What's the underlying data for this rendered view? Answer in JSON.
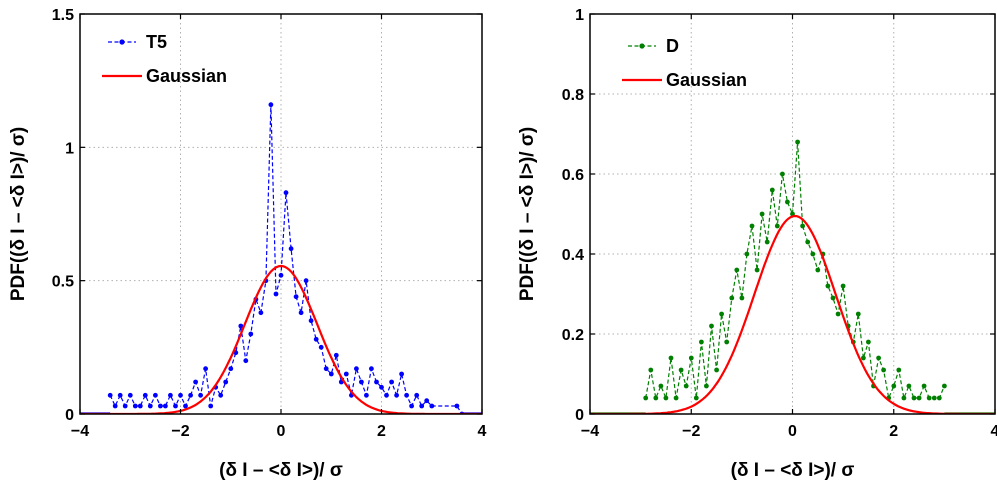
{
  "chart_data": [
    {
      "type": "line",
      "xlabel": "(δ I – <δ I>)/ σ",
      "ylabel": "PDF((δ I – <δ I>)/ σ)",
      "xlim": [
        -4,
        4
      ],
      "ylim": [
        0,
        1.5
      ],
      "xticks": [
        "−4",
        "−2",
        "0",
        "2",
        "4"
      ],
      "xtick_values": [
        -4,
        -2,
        0,
        2,
        4
      ],
      "yticks": [
        "0",
        "0.5",
        "1",
        "1.5"
      ],
      "ytick_values": [
        0,
        0.5,
        1,
        1.5
      ],
      "grid": true,
      "legend": "top-left",
      "series": [
        {
          "name": "T5",
          "color": "#0000ff",
          "style": "dashed-dots",
          "x": [
            -3.4,
            -3.3,
            -3.2,
            -3.1,
            -3.0,
            -2.9,
            -2.8,
            -2.7,
            -2.6,
            -2.5,
            -2.4,
            -2.3,
            -2.2,
            -2.1,
            -2.0,
            -1.9,
            -1.8,
            -1.7,
            -1.6,
            -1.5,
            -1.4,
            -1.3,
            -1.2,
            -1.1,
            -1.0,
            -0.9,
            -0.8,
            -0.7,
            -0.6,
            -0.5,
            -0.4,
            -0.3,
            -0.2,
            -0.1,
            0.0,
            0.1,
            0.2,
            0.3,
            0.4,
            0.5,
            0.6,
            0.7,
            0.8,
            0.9,
            1.0,
            1.1,
            1.2,
            1.3,
            1.4,
            1.5,
            1.6,
            1.7,
            1.8,
            1.9,
            2.0,
            2.1,
            2.2,
            2.3,
            2.4,
            2.5,
            2.6,
            2.7,
            2.8,
            2.9,
            3.0,
            3.5,
            3.6
          ],
          "y": [
            0.07,
            0.03,
            0.07,
            0.03,
            0.07,
            0.03,
            0.03,
            0.07,
            0.03,
            0.07,
            0.03,
            0.03,
            0.07,
            0.03,
            0.07,
            0.03,
            0.07,
            0.12,
            0.07,
            0.17,
            0.03,
            0.1,
            0.07,
            0.12,
            0.17,
            0.23,
            0.33,
            0.2,
            0.3,
            0.43,
            0.38,
            0.5,
            1.16,
            0.45,
            0.52,
            0.83,
            0.62,
            0.44,
            0.38,
            0.5,
            0.35,
            0.28,
            0.25,
            0.17,
            0.15,
            0.22,
            0.12,
            0.15,
            0.07,
            0.17,
            0.12,
            0.07,
            0.17,
            0.12,
            0.1,
            0.07,
            0.12,
            0.07,
            0.15,
            0.07,
            0.03,
            0.07,
            0.03,
            0.05,
            0.03,
            0.03,
            0.0
          ]
        },
        {
          "name": "Gaussian",
          "color": "#ff0000",
          "style": "solid",
          "mean": 0.0,
          "sd": 0.72,
          "peak": 0.555
        }
      ]
    },
    {
      "type": "line",
      "xlabel": "(δ I – <δ I>)/ σ",
      "ylabel": "PDF((δ I – <δ I>)/ σ)",
      "xlim": [
        -4,
        4
      ],
      "ylim": [
        0,
        1
      ],
      "xticks": [
        "−4",
        "−2",
        "0",
        "2",
        "4"
      ],
      "xtick_values": [
        -4,
        -2,
        0,
        2,
        4
      ],
      "yticks": [
        "0",
        "0.2",
        "0.4",
        "0.6",
        "0.8",
        "1"
      ],
      "ytick_values": [
        0,
        0.2,
        0.4,
        0.6,
        0.8,
        1
      ],
      "grid": true,
      "legend": "top-left",
      "series": [
        {
          "name": "D",
          "color": "#008000",
          "style": "dashed-dots",
          "x": [
            -2.9,
            -2.8,
            -2.7,
            -2.6,
            -2.5,
            -2.4,
            -2.3,
            -2.2,
            -2.1,
            -2.0,
            -1.9,
            -1.8,
            -1.7,
            -1.6,
            -1.5,
            -1.4,
            -1.3,
            -1.2,
            -1.1,
            -1.0,
            -0.9,
            -0.8,
            -0.7,
            -0.6,
            -0.5,
            -0.4,
            -0.3,
            -0.2,
            -0.1,
            0.0,
            0.1,
            0.2,
            0.3,
            0.4,
            0.5,
            0.6,
            0.7,
            0.8,
            0.9,
            1.0,
            1.1,
            1.2,
            1.3,
            1.4,
            1.5,
            1.6,
            1.7,
            1.8,
            1.9,
            2.0,
            2.1,
            2.2,
            2.3,
            2.4,
            2.5,
            2.6,
            2.7,
            2.8,
            2.9,
            3.0
          ],
          "y": [
            0.04,
            0.11,
            0.04,
            0.07,
            0.04,
            0.14,
            0.04,
            0.11,
            0.07,
            0.14,
            0.04,
            0.18,
            0.07,
            0.22,
            0.11,
            0.25,
            0.18,
            0.29,
            0.36,
            0.29,
            0.4,
            0.47,
            0.36,
            0.5,
            0.43,
            0.56,
            0.47,
            0.6,
            0.53,
            0.5,
            0.68,
            0.47,
            0.43,
            0.4,
            0.36,
            0.4,
            0.32,
            0.29,
            0.25,
            0.32,
            0.22,
            0.18,
            0.25,
            0.14,
            0.18,
            0.07,
            0.14,
            0.11,
            0.04,
            0.07,
            0.11,
            0.04,
            0.07,
            0.04,
            0.04,
            0.07,
            0.04,
            0.04,
            0.04,
            0.07
          ]
        },
        {
          "name": "Gaussian",
          "color": "#ff0000",
          "style": "solid",
          "mean": 0.05,
          "sd": 0.8,
          "peak": 0.495
        }
      ]
    }
  ]
}
